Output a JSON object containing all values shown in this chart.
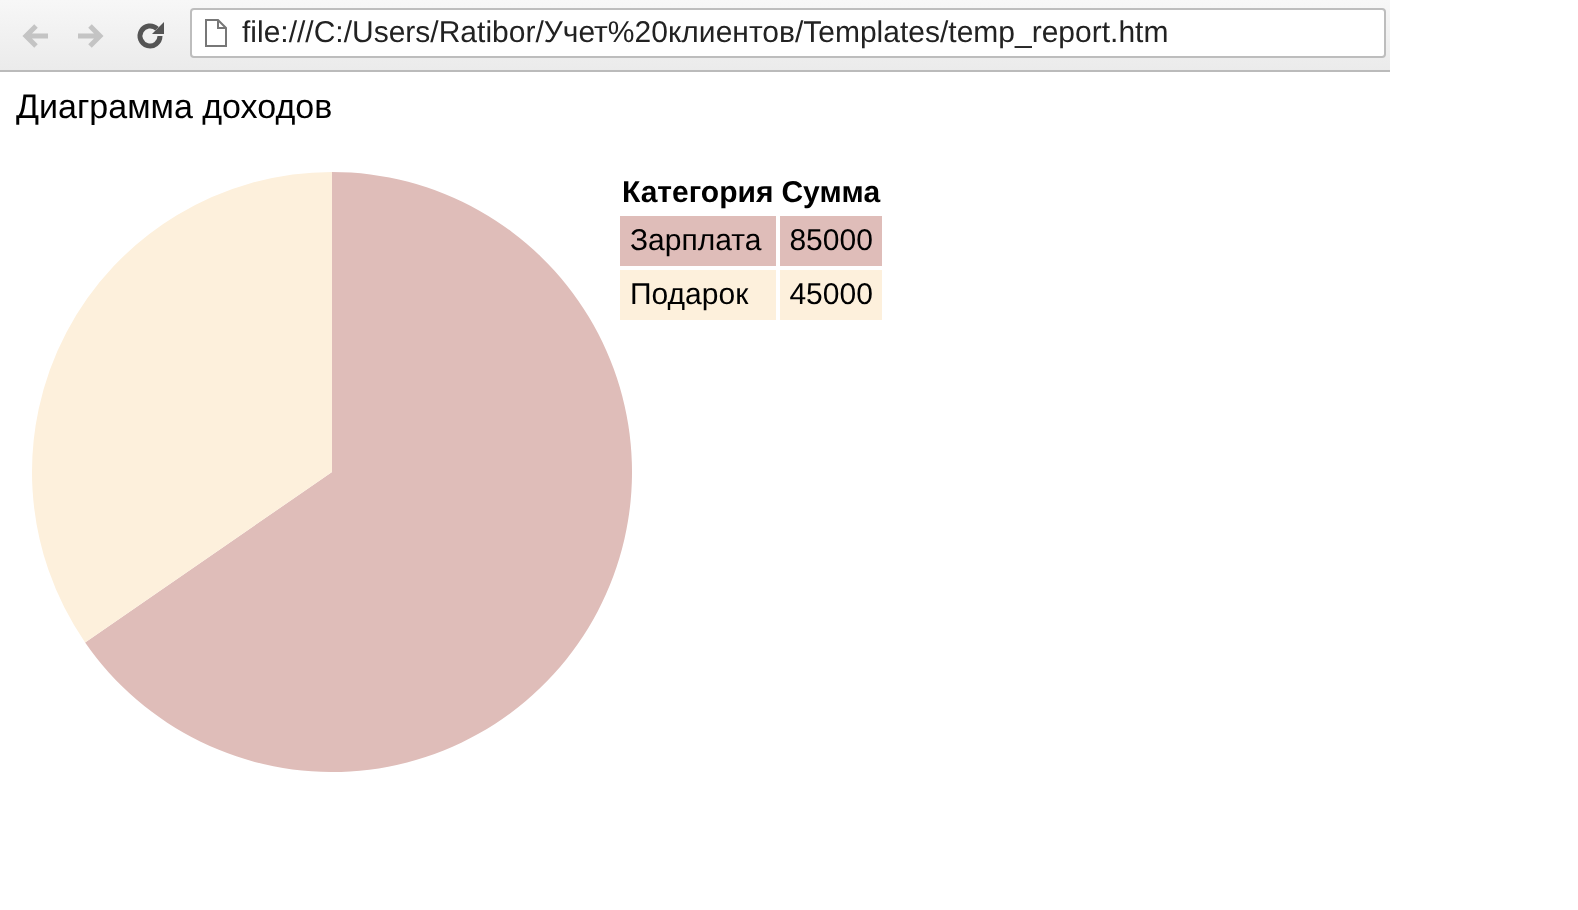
{
  "chart_data": {
    "type": "pie",
    "title": "Диаграмма доходов",
    "categories": [
      "Зарплата",
      "Подарок"
    ],
    "values": [
      85000,
      45000
    ],
    "colors": [
      "#dfbdb9",
      "#fdf0dc"
    ],
    "data_labels": true,
    "legend": "right",
    "annotations": [
      "file:///C:/Users/Ratibor/Учет%20клиентов/Templates/temp_report.htm",
      "Категория",
      "Сумма"
    ]
  }
}
